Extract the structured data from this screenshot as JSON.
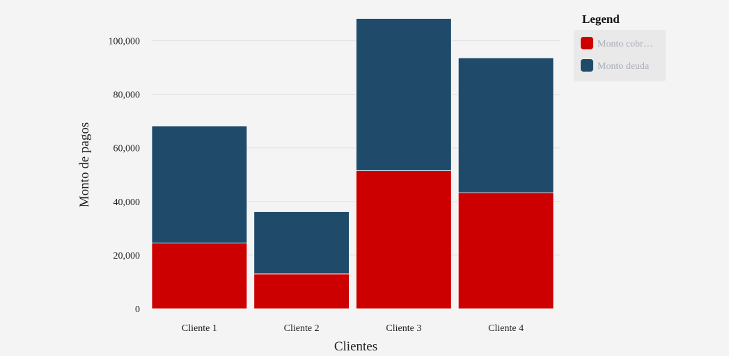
{
  "chart_data": {
    "type": "bar",
    "stacked": true,
    "categories": [
      "Cliente 1",
      "Cliente 2",
      "Cliente 3",
      "Cliente 4"
    ],
    "series": [
      {
        "name": "Monto cobr…",
        "color": "#cc0000",
        "values": [
          24500,
          13000,
          51500,
          43300
        ]
      },
      {
        "name": "Monto deuda",
        "color": "#204a6a",
        "values": [
          43700,
          23200,
          56800,
          50300
        ]
      }
    ],
    "xlabel": "Clientes",
    "ylabel": "Monto de pagos",
    "ylim": [
      0,
      110000
    ],
    "yticks": [
      0,
      20000,
      40000,
      60000,
      80000,
      100000
    ],
    "ytick_labels": [
      "0",
      "20,000",
      "40,000",
      "60,000",
      "80,000",
      "100,000"
    ],
    "grid": true,
    "legend": {
      "title": "Legend",
      "position": "top-right"
    }
  }
}
